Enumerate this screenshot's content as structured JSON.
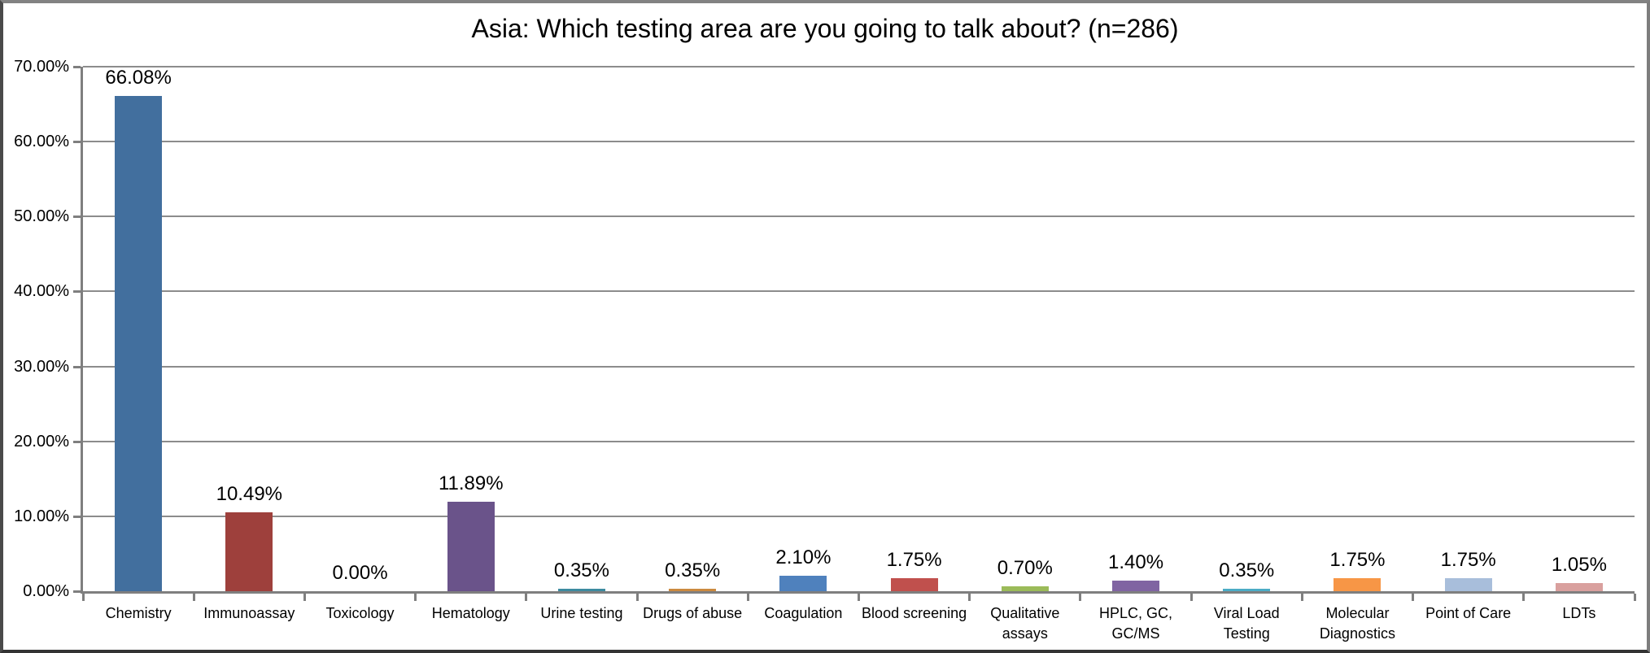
{
  "chart_data": {
    "type": "bar",
    "title": "Asia: Which testing area are you going to talk about? (n=286)",
    "categories": [
      "Chemistry",
      "Immunoassay",
      "Toxicology",
      "Hematology",
      "Urine testing",
      "Drugs of abuse",
      "Coagulation",
      "Blood screening",
      "Qualitative assays",
      "HPLC, GC, GC/MS",
      "Viral Load Testing",
      "Molecular Diagnostics",
      "Point of Care",
      "LDTs"
    ],
    "category_display": [
      "Chemistry",
      "Immunoassay",
      "Toxicology",
      "Hematology",
      "Urine testing",
      "Drugs of abuse",
      "Coagulation",
      "Blood screening",
      "Qualitative\nassays",
      "HPLC, GC,\nGC/MS",
      "Viral Load\nTesting",
      "Molecular\nDiagnostics",
      "Point of Care",
      "LDTs"
    ],
    "values": [
      66.08,
      10.49,
      0.0,
      11.89,
      0.35,
      0.35,
      2.1,
      1.75,
      0.7,
      1.4,
      0.35,
      1.75,
      1.75,
      1.05
    ],
    "value_labels": [
      "66.08%",
      "10.49%",
      "0.00%",
      "11.89%",
      "0.35%",
      "0.35%",
      "2.10%",
      "1.75%",
      "0.70%",
      "1.40%",
      "0.35%",
      "1.75%",
      "1.75%",
      "1.05%"
    ],
    "bar_colors": [
      "#426F9E",
      "#9E403C",
      null,
      "#6A538A",
      "#3D8BA0",
      "#CB8A3F",
      "#4F81BD",
      "#C0504D",
      "#9BBB59",
      "#8064A2",
      "#4BACC6",
      "#F79646",
      "#A8BEDB",
      "#D9A09E"
    ],
    "xlabel": "",
    "ylabel": "",
    "ylim": [
      0,
      70
    ],
    "ytick_labels": [
      "0.00%",
      "10.00%",
      "20.00%",
      "30.00%",
      "40.00%",
      "50.00%",
      "60.00%",
      "70.00%"
    ],
    "grid": "horizontal",
    "legend": "none"
  },
  "style": {
    "gridline_color": "#8C8C8C",
    "axis_color": "#7F7F7F",
    "background": "#FFFFFF",
    "text_color": "#000000"
  }
}
